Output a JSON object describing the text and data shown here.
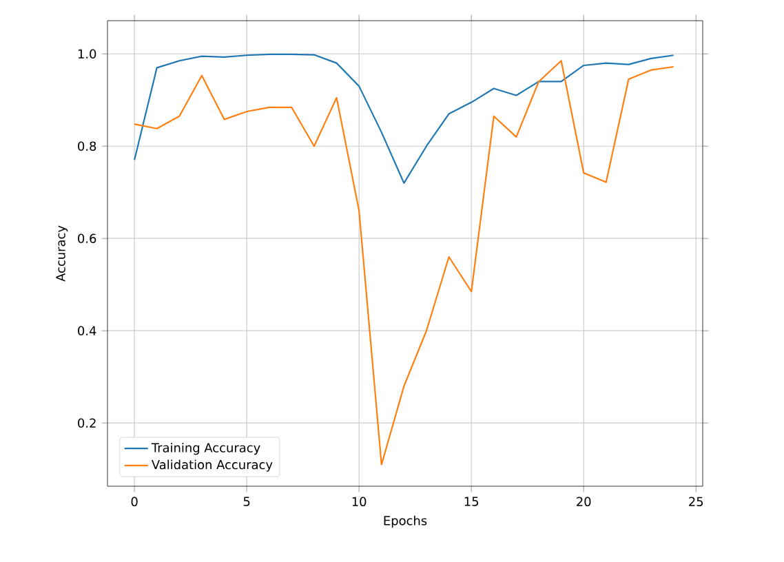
{
  "chart_data": {
    "type": "line",
    "xlabel": "Epochs",
    "ylabel": "Accuracy",
    "x": [
      0,
      1,
      2,
      3,
      4,
      5,
      6,
      7,
      8,
      9,
      10,
      11,
      12,
      13,
      14,
      15,
      16,
      17,
      18,
      19,
      20,
      21,
      22,
      23,
      24
    ],
    "series": [
      {
        "name": "Training Accuracy",
        "color": "#1f77b4",
        "values": [
          0.77,
          0.97,
          0.985,
          0.995,
          0.993,
          0.997,
          0.999,
          0.999,
          0.998,
          0.98,
          0.93,
          0.83,
          0.72,
          0.8,
          0.87,
          0.895,
          0.925,
          0.91,
          0.94,
          0.94,
          0.975,
          0.98,
          0.977,
          0.99,
          0.997
        ]
      },
      {
        "name": "Validation Accuracy",
        "color": "#ff7f0e",
        "values": [
          0.848,
          0.838,
          0.865,
          0.953,
          0.858,
          0.875,
          0.884,
          0.884,
          0.8,
          0.905,
          0.66,
          0.11,
          0.28,
          0.4,
          0.56,
          0.485,
          0.865,
          0.82,
          0.94,
          0.985,
          0.742,
          0.722,
          0.945,
          0.965,
          0.972
        ]
      }
    ],
    "xlim": [
      -1.2,
      25.3
    ],
    "ylim": [
      0.063,
      1.072
    ],
    "xticks": [
      0,
      5,
      10,
      15,
      20,
      25
    ],
    "yticks": [
      0.2,
      0.4,
      0.6,
      0.8,
      {
        "value": 1.0,
        "label": "1.0"
      }
    ],
    "grid": true,
    "legend": "bottom left",
    "marker": "none",
    "line_style": "solid"
  }
}
